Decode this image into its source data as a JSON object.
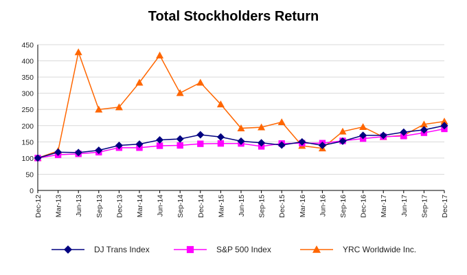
{
  "chart_data": {
    "type": "line",
    "title": "Total Stockholders Return",
    "xlabel": "",
    "ylabel": "",
    "ylim": [
      0,
      450
    ],
    "yticks": [
      0,
      50,
      100,
      150,
      200,
      250,
      300,
      350,
      400,
      450
    ],
    "grid": true,
    "legend_position": "bottom",
    "categories": [
      "Dec-12",
      "Mar-13",
      "Jun-13",
      "Sep-13",
      "Dec-13",
      "Mar-14",
      "Jun-14",
      "Sep-14",
      "Dec-14",
      "Mar-15",
      "Jun-15",
      "Sep-15",
      "Dec-15",
      "Mar-16",
      "Jun-16",
      "Sep-16",
      "Dec-16",
      "Mar-17",
      "Jun-17",
      "Sep-17",
      "Dec-17"
    ],
    "series": [
      {
        "name": "DJ Trans Index",
        "color": "#000080",
        "marker": "diamond",
        "values": [
          100,
          118,
          117,
          124,
          139,
          143,
          156,
          159,
          172,
          165,
          152,
          147,
          140,
          150,
          139,
          152,
          170,
          170,
          180,
          187,
          200
        ]
      },
      {
        "name": "S&P 500 Index",
        "color": "#ff00ff",
        "marker": "square",
        "values": [
          100,
          110,
          113,
          118,
          132,
          132,
          138,
          139,
          144,
          145,
          145,
          136,
          145,
          146,
          146,
          153,
          160,
          166,
          168,
          178,
          190
        ]
      },
      {
        "name": "YRC Worldwide Inc.",
        "color": "#ff6600",
        "marker": "triangle",
        "values": [
          100,
          122,
          427,
          250,
          257,
          333,
          417,
          301,
          333,
          266,
          192,
          195,
          211,
          138,
          130,
          182,
          196,
          165,
          170,
          204,
          213
        ]
      }
    ]
  }
}
